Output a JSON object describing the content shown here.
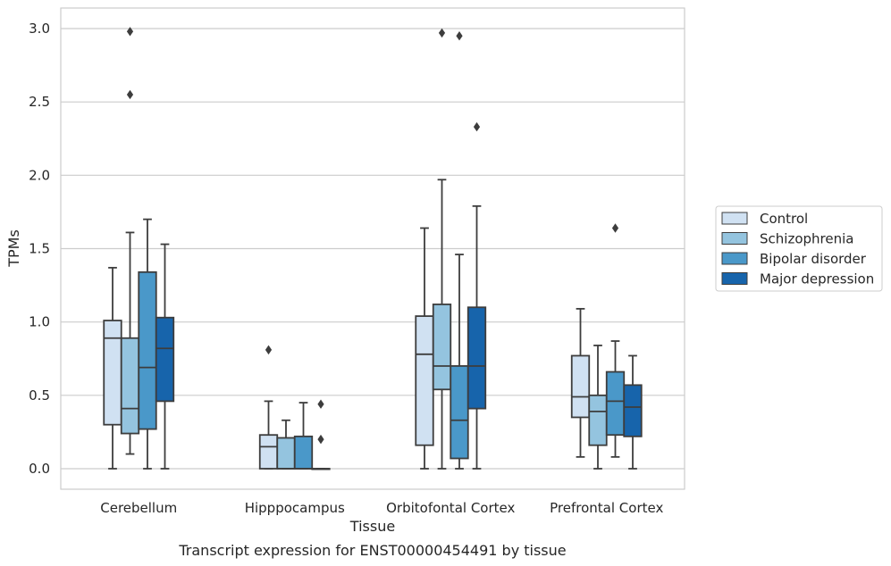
{
  "caption": "Transcript expression for ENST00000454491 by tissue",
  "chart_data": {
    "type": "boxplot",
    "title": "",
    "xlabel": "Tissue",
    "ylabel": "TPMs",
    "ylim": [
      -0.14,
      3.14
    ],
    "yticks": [
      0.0,
      0.5,
      1.0,
      1.5,
      2.0,
      2.5,
      3.0
    ],
    "ytick_labels": [
      "0.0",
      "0.5",
      "1.0",
      "1.5",
      "2.0",
      "2.5",
      "3.0"
    ],
    "grid": "horizontal",
    "legend_position": "right",
    "categories": [
      "Cerebellum",
      "Hipppocampus",
      "Orbitofontal Cortex",
      "Prefrontal Cortex"
    ],
    "series": [
      {
        "name": "Control",
        "color": "#d0e1f2",
        "boxes": [
          {
            "whislo": 0.0,
            "q1": 0.3,
            "med": 0.89,
            "q3": 1.01,
            "whishi": 1.37,
            "fliers": []
          },
          {
            "whislo": 0.0,
            "q1": 0.0,
            "med": 0.15,
            "q3": 0.23,
            "whishi": 0.46,
            "fliers": [
              0.81
            ]
          },
          {
            "whislo": 0.0,
            "q1": 0.16,
            "med": 0.78,
            "q3": 1.04,
            "whishi": 1.64,
            "fliers": []
          },
          {
            "whislo": 0.08,
            "q1": 0.35,
            "med": 0.49,
            "q3": 0.77,
            "whishi": 1.09,
            "fliers": []
          }
        ]
      },
      {
        "name": "Schizophrenia",
        "color": "#94c4df",
        "boxes": [
          {
            "whislo": 0.1,
            "q1": 0.24,
            "med": 0.41,
            "q3": 0.89,
            "whishi": 1.61,
            "fliers": [
              2.55,
              2.98
            ]
          },
          {
            "whislo": 0.0,
            "q1": 0.0,
            "med": 0.0,
            "q3": 0.21,
            "whishi": 0.33,
            "fliers": []
          },
          {
            "whislo": 0.0,
            "q1": 0.54,
            "med": 0.7,
            "q3": 1.12,
            "whishi": 1.97,
            "fliers": [
              2.97
            ]
          },
          {
            "whislo": 0.0,
            "q1": 0.16,
            "med": 0.39,
            "q3": 0.5,
            "whishi": 0.84,
            "fliers": []
          }
        ]
      },
      {
        "name": "Bipolar disorder",
        "color": "#4a98c9",
        "boxes": [
          {
            "whislo": 0.0,
            "q1": 0.27,
            "med": 0.69,
            "q3": 1.34,
            "whishi": 1.7,
            "fliers": []
          },
          {
            "whislo": 0.0,
            "q1": 0.0,
            "med": 0.0,
            "q3": 0.22,
            "whishi": 0.45,
            "fliers": []
          },
          {
            "whislo": 0.0,
            "q1": 0.07,
            "med": 0.33,
            "q3": 0.7,
            "whishi": 1.46,
            "fliers": [
              2.95
            ]
          },
          {
            "whislo": 0.08,
            "q1": 0.23,
            "med": 0.46,
            "q3": 0.66,
            "whishi": 0.87,
            "fliers": [
              1.64
            ]
          }
        ]
      },
      {
        "name": "Major depression",
        "color": "#1764ab",
        "boxes": [
          {
            "whislo": 0.0,
            "q1": 0.46,
            "med": 0.82,
            "q3": 1.03,
            "whishi": 1.53,
            "fliers": []
          },
          {
            "whislo": 0.0,
            "q1": 0.0,
            "med": 0.0,
            "q3": 0.0,
            "whishi": 0.0,
            "fliers": [
              0.2,
              0.44
            ]
          },
          {
            "whislo": 0.0,
            "q1": 0.41,
            "med": 0.7,
            "q3": 1.1,
            "whishi": 1.79,
            "fliers": [
              2.33
            ]
          },
          {
            "whislo": 0.0,
            "q1": 0.22,
            "med": 0.42,
            "q3": 0.57,
            "whishi": 0.77,
            "fliers": []
          }
        ]
      }
    ]
  }
}
